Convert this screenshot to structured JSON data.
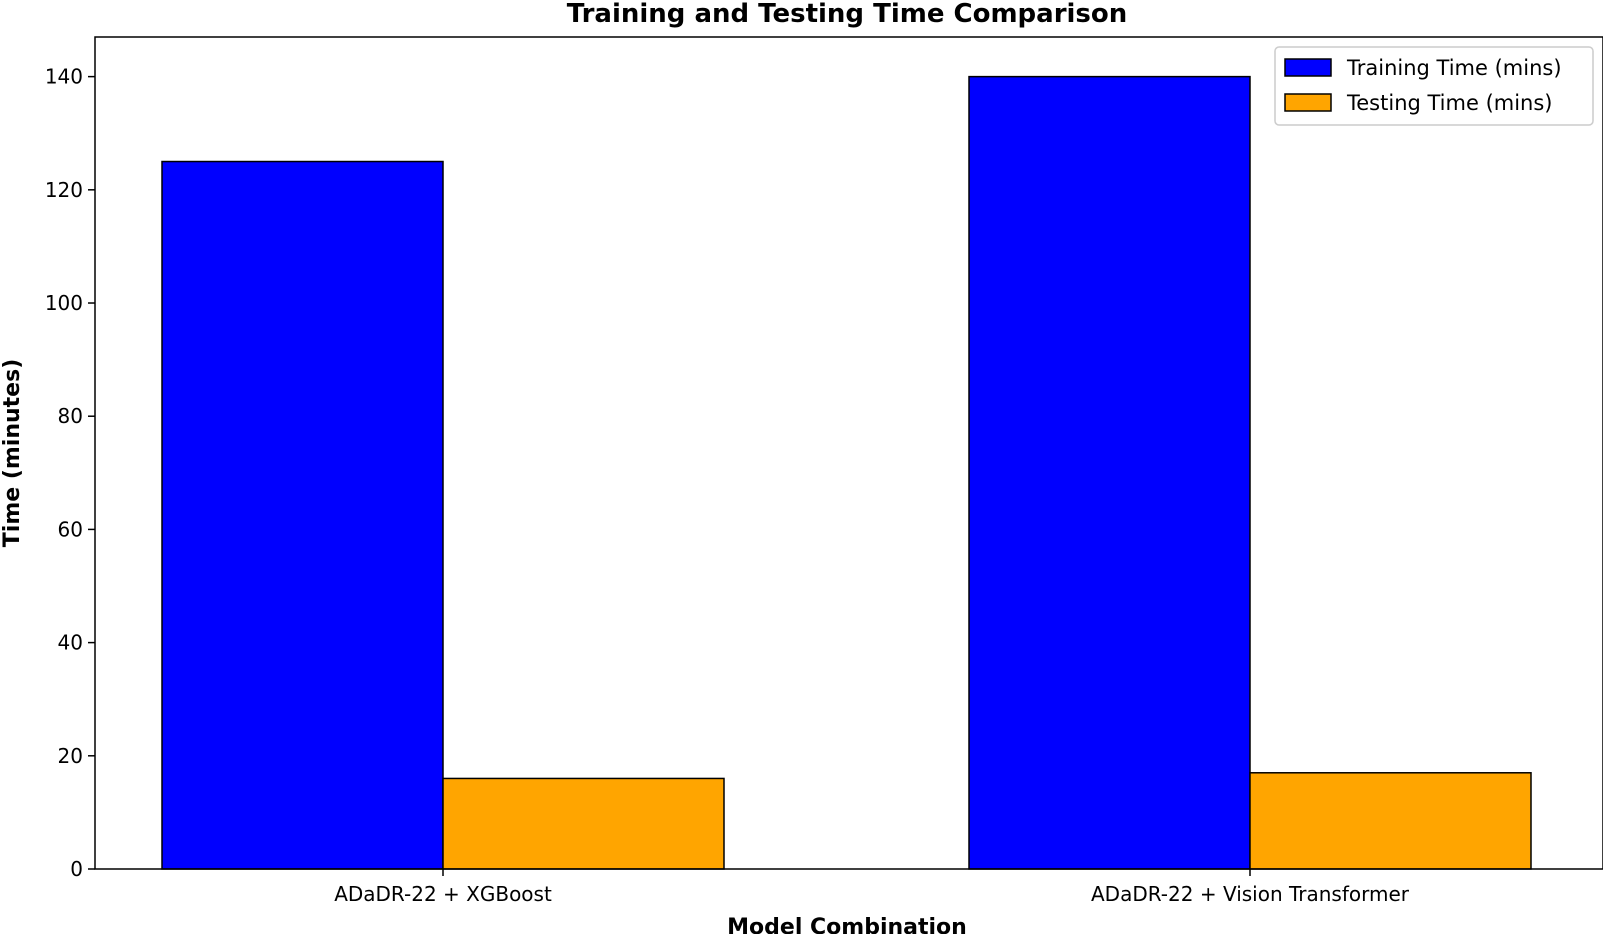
{
  "chart_data": {
    "type": "bar",
    "title": "Training and Testing Time Comparison",
    "xlabel": "Model Combination",
    "ylabel": "Time (minutes)",
    "categories": [
      "ADaDR-22 + XGBoost",
      "ADaDR-22 + Vision Transformer"
    ],
    "series": [
      {
        "name": "Training Time (mins)",
        "values": [
          125,
          140
        ],
        "color": "#0000ff"
      },
      {
        "name": "Testing Time (mins)",
        "values": [
          16,
          17
        ],
        "color": "#ffa500"
      }
    ],
    "ylim": [
      0,
      147
    ],
    "yticks": [
      0,
      20,
      40,
      60,
      80,
      100,
      120,
      140
    ],
    "grid": false,
    "legend_position": "top-right"
  }
}
